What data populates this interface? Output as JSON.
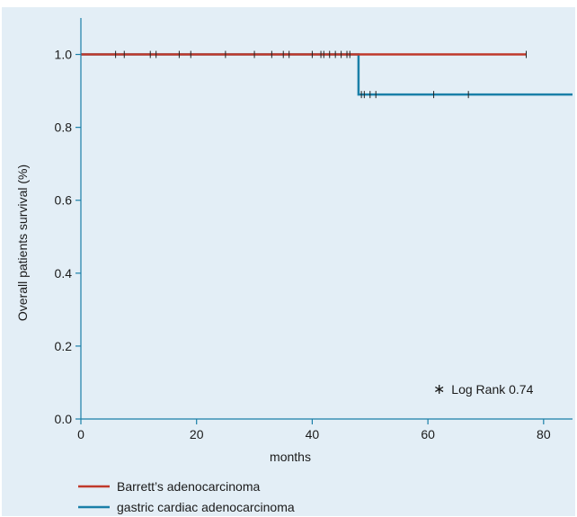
{
  "chart_data": {
    "type": "line",
    "xlabel": "months",
    "ylabel": "Overall patients survival (%)",
    "xlim": [
      0,
      85
    ],
    "ylim": [
      0,
      1.1
    ],
    "xticks": [
      "0",
      "20",
      "40",
      "60",
      "80"
    ],
    "yticks": [
      "0.0",
      "0.2",
      "0.4",
      "0.6",
      "0.8",
      "1.0"
    ],
    "annotation": {
      "symbol": "∗",
      "text": "Log Rank 0.74"
    },
    "series": [
      {
        "name": "Barrett’s adenocarcinoma",
        "color": "#c0392b",
        "steps": [
          [
            0,
            1.0
          ],
          [
            77,
            1.0
          ]
        ],
        "censored": [
          [
            77,
            1.0
          ]
        ]
      },
      {
        "name": "gastric cardiac adenocarcinoma",
        "color": "#1a7fa8",
        "steps": [
          [
            0,
            1.0
          ],
          [
            48,
            1.0
          ],
          [
            48,
            0.89
          ],
          [
            85,
            0.89
          ]
        ],
        "censored": [
          [
            6,
            1.0
          ],
          [
            7.5,
            1.0
          ],
          [
            12,
            1.0
          ],
          [
            13,
            1.0
          ],
          [
            17,
            1.0
          ],
          [
            19,
            1.0
          ],
          [
            25,
            1.0
          ],
          [
            30,
            1.0
          ],
          [
            33,
            1.0
          ],
          [
            35,
            1.0
          ],
          [
            36,
            1.0
          ],
          [
            40,
            1.0
          ],
          [
            41.5,
            1.0
          ],
          [
            42,
            1.0
          ],
          [
            43,
            1.0
          ],
          [
            44,
            1.0
          ],
          [
            45,
            1.0
          ],
          [
            46,
            1.0
          ],
          [
            46.5,
            1.0
          ],
          [
            48.5,
            0.89
          ],
          [
            49,
            0.89
          ],
          [
            50,
            0.89
          ],
          [
            51,
            0.89
          ],
          [
            61,
            0.89
          ],
          [
            67,
            0.89
          ]
        ]
      }
    ]
  }
}
